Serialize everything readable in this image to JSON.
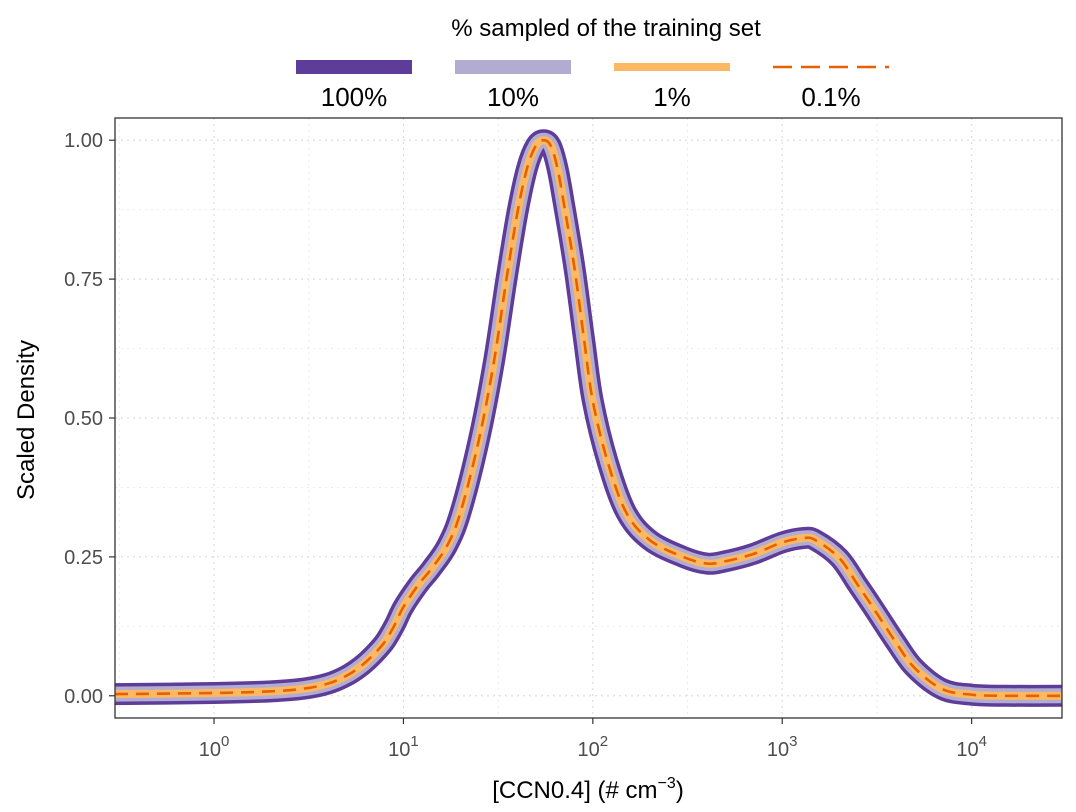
{
  "chart_data": {
    "type": "line",
    "legend": {
      "title": "% sampled of the training set",
      "position": "top"
    },
    "xlabel_main": "[CCN0.4] (# cm",
    "xlabel_sup": "−3",
    "xlabel_tail": ")",
    "ylabel": "Scaled Density",
    "x_scale": "log10",
    "xlim": [
      0.3,
      30000
    ],
    "ylim": [
      -0.04,
      1.04
    ],
    "x_ticks": [
      {
        "value": 1,
        "base": "10",
        "exp": "0"
      },
      {
        "value": 10,
        "base": "10",
        "exp": "1"
      },
      {
        "value": 100,
        "base": "10",
        "exp": "2"
      },
      {
        "value": 1000,
        "base": "10",
        "exp": "3"
      },
      {
        "value": 10000,
        "base": "10",
        "exp": "4"
      }
    ],
    "y_ticks": [
      {
        "value": 0,
        "label": "0.00"
      },
      {
        "value": 0.25,
        "label": "0.25"
      },
      {
        "value": 0.5,
        "label": "0.50"
      },
      {
        "value": 0.75,
        "label": "0.75"
      },
      {
        "value": 1.0,
        "label": "1.00"
      }
    ],
    "grid": true,
    "x": [
      0.3,
      1,
      2,
      3,
      4,
      5,
      6,
      7,
      8,
      9,
      10,
      12,
      14,
      17,
      20,
      25,
      30,
      35,
      40,
      45,
      50,
      55,
      60,
      65,
      70,
      80,
      90,
      100,
      120,
      150,
      200,
      300,
      400,
      500,
      700,
      1000,
      1300,
      1500,
      2000,
      2500,
      3000,
      4000,
      5000,
      7000,
      10000,
      15000,
      30000
    ],
    "series": [
      {
        "name": "100%",
        "color": "#5e3c99",
        "dash": "solid",
        "values": [
          0.003,
          0.005,
          0.008,
          0.013,
          0.022,
          0.036,
          0.054,
          0.075,
          0.098,
          0.128,
          0.16,
          0.2,
          0.228,
          0.27,
          0.33,
          0.46,
          0.6,
          0.75,
          0.87,
          0.95,
          0.99,
          1.0,
          0.99,
          0.95,
          0.89,
          0.77,
          0.64,
          0.53,
          0.42,
          0.33,
          0.28,
          0.25,
          0.238,
          0.242,
          0.255,
          0.276,
          0.284,
          0.28,
          0.248,
          0.2,
          0.16,
          0.095,
          0.05,
          0.012,
          0.002,
          0.0,
          0.0
        ]
      },
      {
        "name": "10%",
        "color": "#b2abd2",
        "dash": "solid",
        "values": [
          0.003,
          0.005,
          0.008,
          0.013,
          0.022,
          0.036,
          0.054,
          0.075,
          0.098,
          0.128,
          0.16,
          0.2,
          0.228,
          0.27,
          0.33,
          0.46,
          0.6,
          0.75,
          0.87,
          0.95,
          0.99,
          1.0,
          0.99,
          0.95,
          0.89,
          0.77,
          0.64,
          0.53,
          0.42,
          0.33,
          0.28,
          0.25,
          0.238,
          0.242,
          0.255,
          0.276,
          0.284,
          0.28,
          0.248,
          0.2,
          0.16,
          0.095,
          0.05,
          0.012,
          0.002,
          0.0,
          0.0
        ]
      },
      {
        "name": "1%",
        "color": "#fdb863",
        "dash": "solid",
        "values": [
          0.003,
          0.005,
          0.008,
          0.013,
          0.022,
          0.036,
          0.054,
          0.075,
          0.098,
          0.128,
          0.16,
          0.2,
          0.228,
          0.27,
          0.33,
          0.46,
          0.6,
          0.75,
          0.87,
          0.95,
          0.99,
          1.0,
          0.99,
          0.95,
          0.89,
          0.77,
          0.64,
          0.53,
          0.42,
          0.33,
          0.28,
          0.25,
          0.238,
          0.242,
          0.255,
          0.276,
          0.284,
          0.28,
          0.248,
          0.2,
          0.16,
          0.095,
          0.05,
          0.012,
          0.002,
          0.0,
          0.0
        ]
      },
      {
        "name": "0.1%",
        "color": "#e66101",
        "dash": "dashed",
        "values": [
          0.003,
          0.005,
          0.008,
          0.013,
          0.022,
          0.036,
          0.054,
          0.075,
          0.098,
          0.128,
          0.16,
          0.2,
          0.228,
          0.27,
          0.33,
          0.46,
          0.6,
          0.75,
          0.87,
          0.95,
          0.99,
          1.0,
          0.99,
          0.95,
          0.89,
          0.77,
          0.64,
          0.53,
          0.42,
          0.33,
          0.28,
          0.25,
          0.238,
          0.242,
          0.255,
          0.276,
          0.284,
          0.28,
          0.248,
          0.2,
          0.16,
          0.095,
          0.05,
          0.012,
          0.002,
          0.0,
          0.0
        ]
      }
    ]
  }
}
